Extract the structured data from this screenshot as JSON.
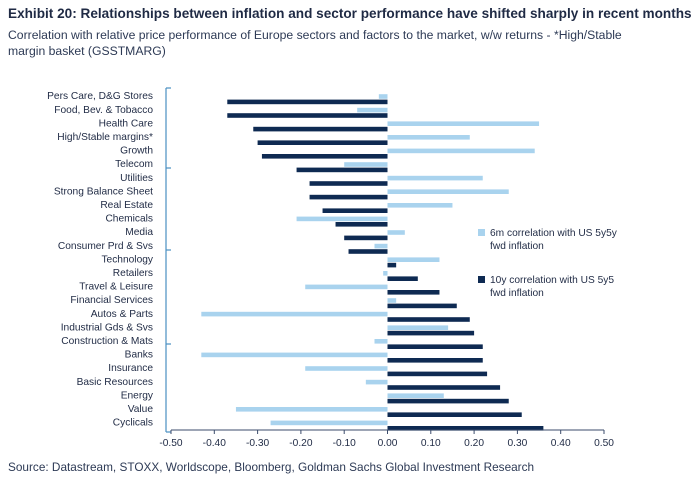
{
  "header": {
    "title": "Exhibit 20: Relationships between inflation and sector performance have shifted sharply in recent months",
    "subtitle": "Correlation with relative price performance of Europe sectors and factors to the market, w/w returns - *High/Stable margin basket (GSSTMARG)"
  },
  "footer": {
    "source": "Source: Datastream, STOXX, Worldscope, Bloomberg, Goldman Sachs Global Investment Research"
  },
  "colors": {
    "series_6m": "#a9d3ee",
    "series_10y": "#0e2a52",
    "axis": "#3b4b6b",
    "bracket": "#4a90c2"
  },
  "chart_data": {
    "type": "bar",
    "orientation": "horizontal",
    "categories": [
      "Pers Care, D&G Stores",
      "Food, Bev. & Tobacco",
      "Health Care",
      "High/Stable margins*",
      "Growth",
      "Telecom",
      "Utilities",
      "Strong Balance Sheet",
      "Real Estate",
      "Chemicals",
      "Media",
      "Consumer Prd & Svs",
      "Technology",
      "Retailers",
      "Travel & Leisure",
      "Financial Services",
      "Autos & Parts",
      "Industrial Gds & Svs",
      "Construction & Mats",
      "Banks",
      "Insurance",
      "Basic Resources",
      "Energy",
      "Value",
      "Cyclicals"
    ],
    "series": [
      {
        "name": "6m correlation with US 5y5y fwd inflation",
        "values": [
          -0.02,
          -0.07,
          0.35,
          0.19,
          0.34,
          -0.1,
          0.22,
          0.28,
          0.15,
          -0.21,
          0.04,
          -0.03,
          0.12,
          -0.01,
          -0.19,
          0.02,
          -0.43,
          0.14,
          -0.03,
          -0.43,
          -0.19,
          -0.05,
          0.13,
          -0.35,
          -0.27
        ]
      },
      {
        "name": "10y correlation with US 5y5 fwd inflation",
        "values": [
          -0.37,
          -0.37,
          -0.31,
          -0.3,
          -0.29,
          -0.21,
          -0.18,
          -0.18,
          -0.15,
          -0.12,
          -0.1,
          -0.09,
          0.02,
          0.07,
          0.12,
          0.16,
          0.19,
          0.2,
          0.22,
          0.22,
          0.23,
          0.26,
          0.28,
          0.31,
          0.36
        ]
      }
    ],
    "xlim": [
      -0.5,
      0.5
    ],
    "xticks": [
      "-0.50",
      "-0.40",
      "-0.30",
      "-0.20",
      "-0.10",
      "0.00",
      "0.10",
      "0.20",
      "0.30",
      "0.40",
      "0.50"
    ],
    "legend_position": "right"
  }
}
